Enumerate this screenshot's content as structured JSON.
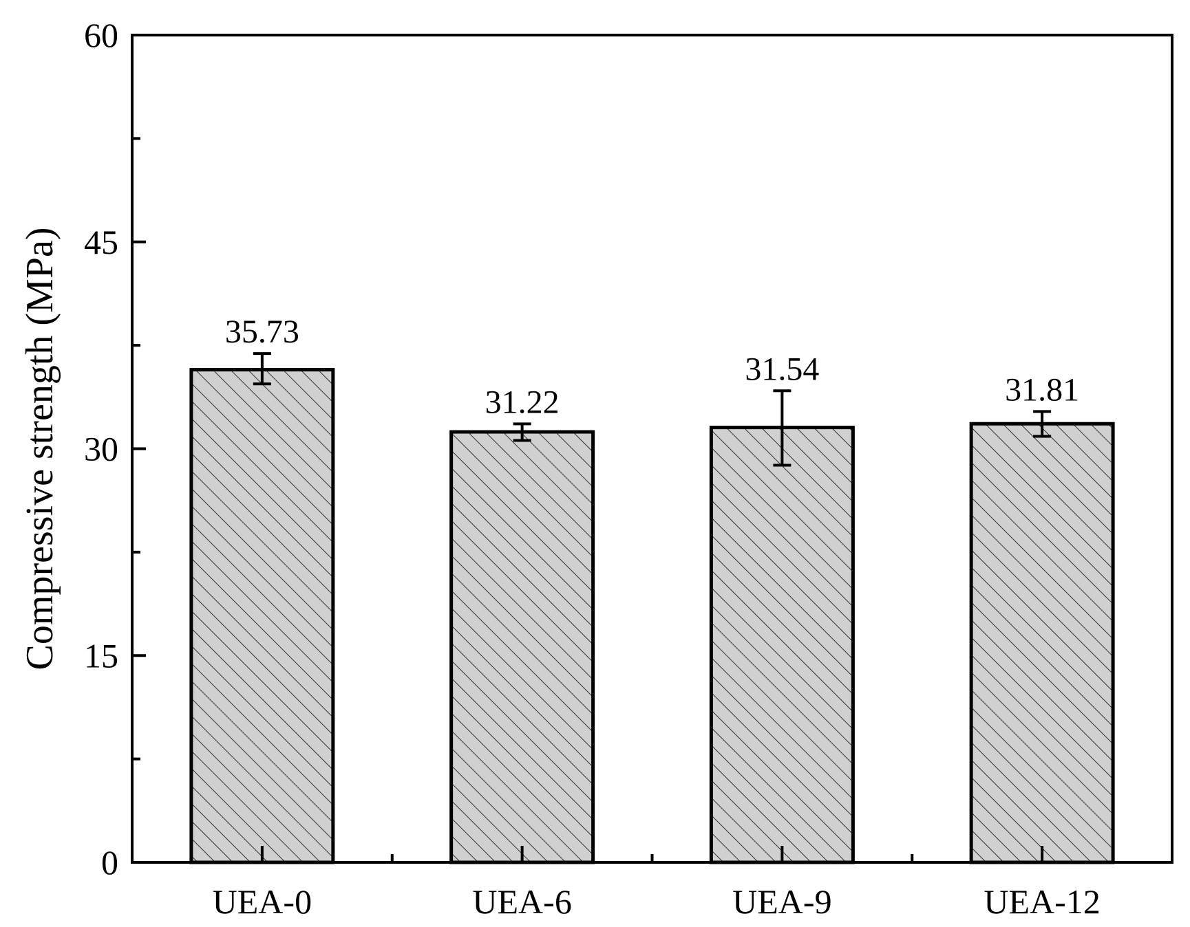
{
  "chart_data": {
    "type": "bar",
    "title": "",
    "xlabel": "",
    "ylabel": "Compressive strength (MPa)",
    "ylim": [
      0,
      60
    ],
    "yticks": [
      0,
      15,
      30,
      45,
      60
    ],
    "y_minor_ticks": [
      7.5,
      22.5,
      37.5,
      52.5
    ],
    "categories": [
      "UEA-0",
      "UEA-6",
      "UEA-9",
      "UEA-12"
    ],
    "values": [
      35.73,
      31.22,
      31.54,
      31.81
    ],
    "value_labels": [
      "35.73",
      "31.22",
      "31.54",
      "31.81"
    ],
    "error_low": [
      34.7,
      30.6,
      28.8,
      30.9
    ],
    "error_high": [
      36.9,
      31.8,
      34.2,
      32.7
    ],
    "grid": false,
    "legend": "none",
    "bar_fill": "hatched diagonal",
    "colors": {
      "bar_fill": "#d0d0d0",
      "bar_edge": "#000000",
      "hatch": "#333333",
      "axis": "#000000"
    }
  }
}
